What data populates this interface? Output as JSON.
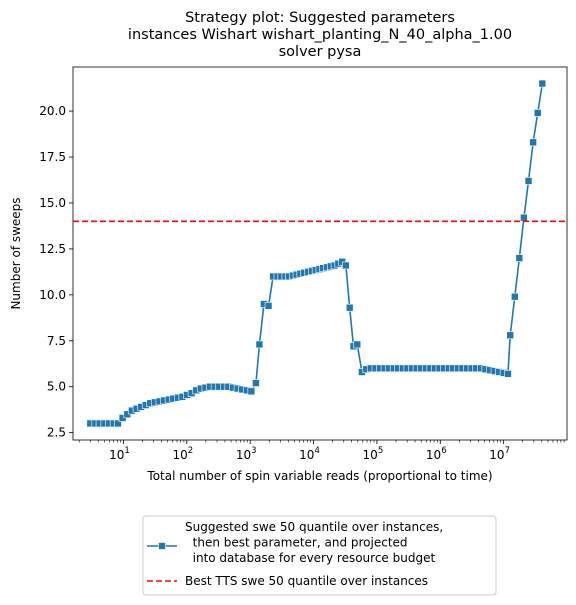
{
  "chart_data": {
    "type": "line",
    "title_lines": [
      "Strategy plot: Suggested parameters",
      "instances Wishart wishart_planting_N_40_alpha_1.00",
      "solver pysa"
    ],
    "xlabel": "Total number of spin variable reads (proportional to time)",
    "ylabel": "Number of sweeps",
    "xscale": "log",
    "xlim": [
      1.6,
      100000000
    ],
    "ylim": [
      2.1,
      22.4
    ],
    "x_ticks": [
      {
        "value": 10,
        "base": "10",
        "exp": "1"
      },
      {
        "value": 100,
        "base": "10",
        "exp": "2"
      },
      {
        "value": 1000,
        "base": "10",
        "exp": "3"
      },
      {
        "value": 10000,
        "base": "10",
        "exp": "4"
      },
      {
        "value": 100000,
        "base": "10",
        "exp": "5"
      },
      {
        "value": 1000000,
        "base": "10",
        "exp": "6"
      },
      {
        "value": 10000000,
        "base": "10",
        "exp": "7"
      }
    ],
    "y_ticks": [
      "2.5",
      "5.0",
      "7.5",
      "10.0",
      "12.5",
      "15.0",
      "17.5",
      "20.0"
    ],
    "grid": false,
    "legend_position": "bottom-center",
    "series": [
      {
        "name": "Suggested swe 50 quantile over instances,\n  then best parameter, and projected\n  into database for every resource budget",
        "color": "#1f77b4",
        "marker": "square",
        "points": [
          [
            3.0,
            3.0
          ],
          [
            3.6,
            3.0
          ],
          [
            4.2,
            3.0
          ],
          [
            5.0,
            3.0
          ],
          [
            5.9,
            3.0
          ],
          [
            7.0,
            3.0
          ],
          [
            8.2,
            3.0
          ],
          [
            9.7,
            3.3
          ],
          [
            11.5,
            3.5
          ],
          [
            13.6,
            3.7
          ],
          [
            16.1,
            3.8
          ],
          [
            19.0,
            3.9
          ],
          [
            22.5,
            4.0
          ],
          [
            26.5,
            4.1
          ],
          [
            31.3,
            4.15
          ],
          [
            37.0,
            4.2
          ],
          [
            43.7,
            4.25
          ],
          [
            51.7,
            4.3
          ],
          [
            61.1,
            4.35
          ],
          [
            72.2,
            4.4
          ],
          [
            85.3,
            4.45
          ],
          [
            100.8,
            4.55
          ],
          [
            119,
            4.65
          ],
          [
            141,
            4.8
          ],
          [
            166,
            4.9
          ],
          [
            197,
            4.95
          ],
          [
            232,
            5.0
          ],
          [
            275,
            5.0
          ],
          [
            325,
            5.0
          ],
          [
            384,
            5.0
          ],
          [
            453,
            5.0
          ],
          [
            536,
            4.95
          ],
          [
            633,
            4.9
          ],
          [
            748,
            4.85
          ],
          [
            884,
            4.8
          ],
          [
            1045,
            4.75
          ],
          [
            1235,
            5.2
          ],
          [
            1400,
            7.3
          ],
          [
            1650,
            9.5
          ],
          [
            1950,
            9.4
          ],
          [
            2300,
            11.0
          ],
          [
            2700,
            11.0
          ],
          [
            3100,
            11.0
          ],
          [
            3600,
            11.0
          ],
          [
            4100,
            11.0
          ],
          [
            4700,
            11.05
          ],
          [
            5400,
            11.1
          ],
          [
            6200,
            11.15
          ],
          [
            7100,
            11.2
          ],
          [
            8200,
            11.25
          ],
          [
            9400,
            11.3
          ],
          [
            10800,
            11.35
          ],
          [
            12400,
            11.4
          ],
          [
            14200,
            11.45
          ],
          [
            16300,
            11.5
          ],
          [
            18700,
            11.55
          ],
          [
            21500,
            11.6
          ],
          [
            24600,
            11.7
          ],
          [
            28300,
            11.8
          ],
          [
            32400,
            11.6
          ],
          [
            37200,
            9.3
          ],
          [
            42700,
            7.2
          ],
          [
            49000,
            7.3
          ],
          [
            58000,
            5.8
          ],
          [
            68000,
            5.95
          ],
          [
            80000,
            6.0
          ],
          [
            95000,
            6.0
          ],
          [
            112000,
            6.0
          ],
          [
            132000,
            6.0
          ],
          [
            156000,
            6.0
          ],
          [
            184000,
            6.0
          ],
          [
            217000,
            6.0
          ],
          [
            257000,
            6.0
          ],
          [
            303000,
            6.0
          ],
          [
            358000,
            6.0
          ],
          [
            423000,
            6.0
          ],
          [
            499000,
            6.0
          ],
          [
            590000,
            6.0
          ],
          [
            697000,
            6.0
          ],
          [
            823000,
            6.0
          ],
          [
            972000,
            6.0
          ],
          [
            1150000,
            6.0
          ],
          [
            1360000,
            6.0
          ],
          [
            1600000,
            6.0
          ],
          [
            1890000,
            6.0
          ],
          [
            2240000,
            6.0
          ],
          [
            2640000,
            6.0
          ],
          [
            3120000,
            6.0
          ],
          [
            3690000,
            6.0
          ],
          [
            4360000,
            6.0
          ],
          [
            5150000,
            5.95
          ],
          [
            6080000,
            5.9
          ],
          [
            7180000,
            5.85
          ],
          [
            8480000,
            5.8
          ],
          [
            10000000,
            5.75
          ],
          [
            11700000,
            5.7
          ],
          [
            12700000,
            7.8
          ],
          [
            15000000,
            9.9
          ],
          [
            17700000,
            12.0
          ],
          [
            20900000,
            14.2
          ],
          [
            24700000,
            16.2
          ],
          [
            29200000,
            18.3
          ],
          [
            34500000,
            19.9
          ],
          [
            40800000,
            21.5
          ]
        ]
      },
      {
        "name": "Best TTS swe 50 quantile over instances",
        "color": "#ff0000",
        "style": "dashed",
        "hline": 14.0
      }
    ]
  }
}
